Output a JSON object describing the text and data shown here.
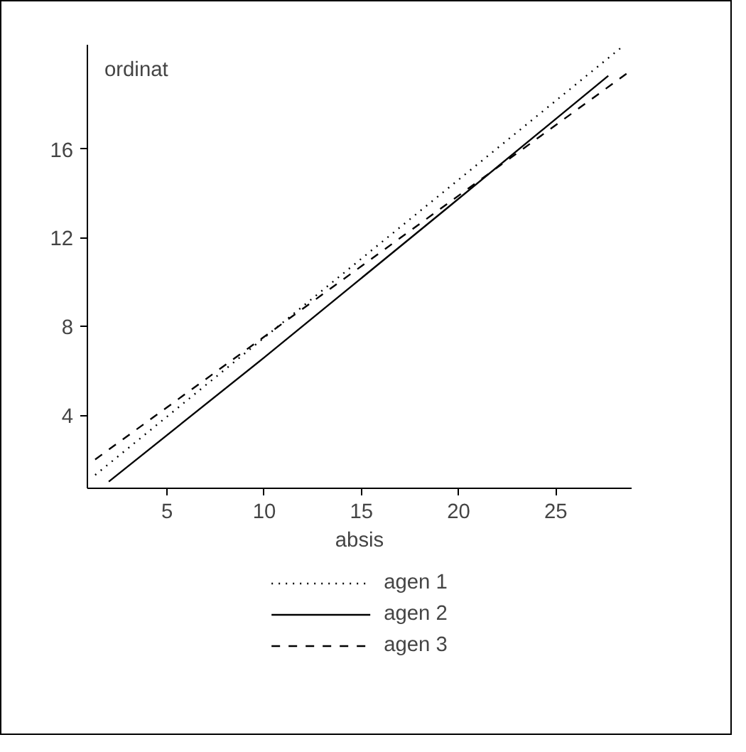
{
  "chart_data": {
    "type": "line",
    "xlabel": "absis",
    "ylabel": "ordinat",
    "xlim": [
      0.9,
      28.9
    ],
    "ylim": [
      0.7,
      20.7
    ],
    "xticks": [
      5,
      10,
      15,
      20,
      25
    ],
    "yticks": [
      4,
      8,
      12,
      16
    ],
    "grid": false,
    "legend": "bottom",
    "marker": "none",
    "series": [
      {
        "name": "agen 1",
        "color": "#000000",
        "line_style": "dotted",
        "x": [
          1.3,
          28.4
        ],
        "values": [
          1.3,
          20.6
        ]
      },
      {
        "name": "agen 2",
        "color": "#000000",
        "line_style": "solid",
        "x": [
          2,
          10,
          19.5,
          27.7
        ],
        "values": [
          1.0,
          6.6,
          13.4,
          19.3
        ]
      },
      {
        "name": "agen 3",
        "color": "#000000",
        "line_style": "dashed",
        "x": [
          1.3,
          28.8
        ],
        "values": [
          2.0,
          19.5
        ]
      }
    ]
  }
}
